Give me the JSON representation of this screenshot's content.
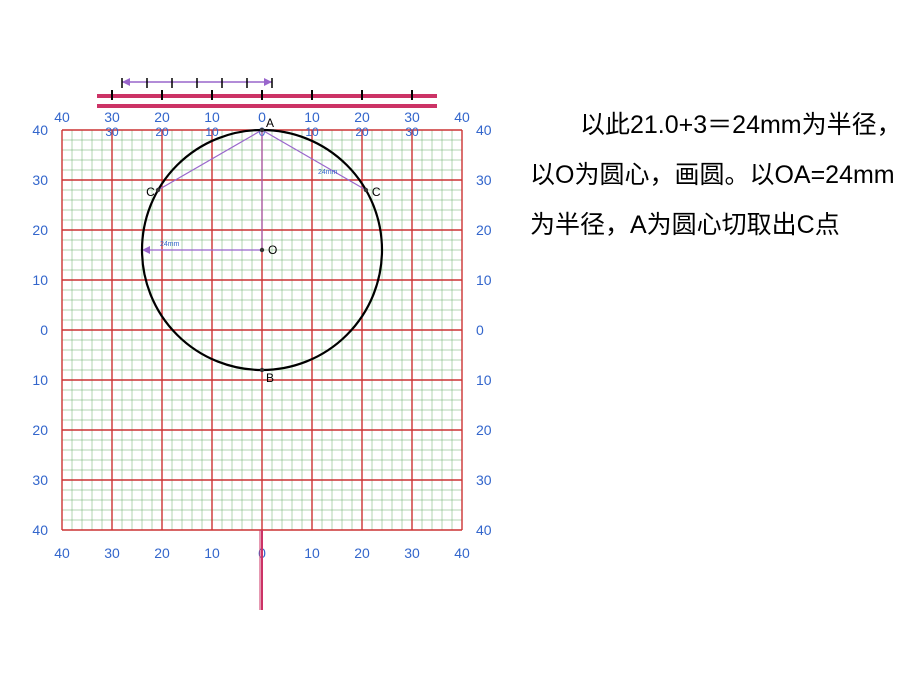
{
  "instruction_text": "以此21.0+3＝24mm为半径，以O为圆心，画圆。以OA=24mm为半径，A为圆心切取出C点",
  "grid": {
    "outer_labels": [
      "40",
      "30",
      "20",
      "10",
      "0",
      "10",
      "20",
      "30",
      "40"
    ],
    "inner_labels": [
      "30",
      "20",
      "10",
      "0",
      "10",
      "20",
      "30"
    ],
    "major_spacing": 10,
    "minor_spacing": 2,
    "origin_y_value": 16,
    "major_color": "#cc3333",
    "minor_color": "#66aa66",
    "label_color": "#3366cc",
    "label_fontsize": 14,
    "background": "#ffffff"
  },
  "ruler": {
    "fill": "#cc3366",
    "arrow_color": "#9966cc",
    "tick_color": "#000000"
  },
  "circle": {
    "center_label": "O",
    "top_label": "A",
    "bottom_label": "B",
    "left_label": "C",
    "right_label": "C",
    "radius_mm": 24,
    "dim_text_1": "24mm",
    "dim_text_2": "24mm",
    "stroke": "#000000",
    "stroke_width": 2.2,
    "point_fill": "#333333",
    "construction_color": "#9966cc",
    "dim_text_color": "#3366cc"
  },
  "bottom_marker": {
    "color": "#cc3366"
  }
}
